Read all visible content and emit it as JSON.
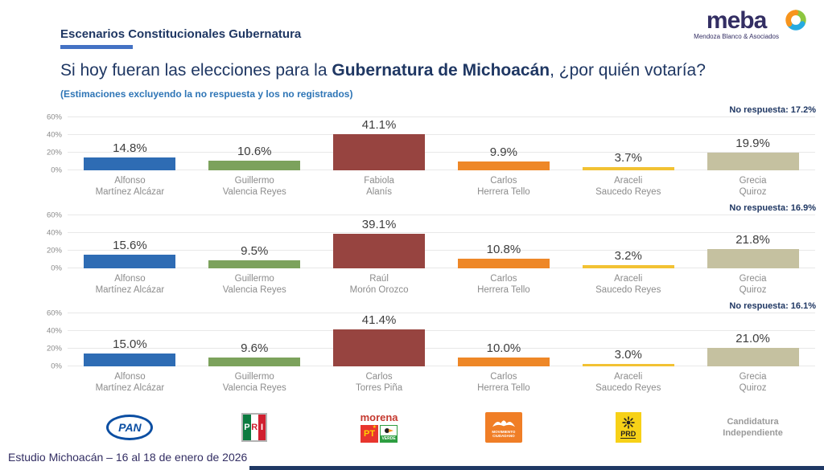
{
  "header": {
    "kicker": "Escenarios Constitucionales Gubernatura",
    "title_prefix": "Si hoy fueran las elecciones para la ",
    "title_bold": "Gubernatura de Michoacán",
    "title_suffix": ", ¿por quién votaría?",
    "subtitle": "(Estimaciones excluyendo la no respuesta y los no registrados)"
  },
  "logo": {
    "name": "meba",
    "tagline": "Mendoza Blanco & Asociados"
  },
  "chart_data": {
    "type": "bar",
    "unit": "%",
    "ylim": [
      0,
      60
    ],
    "y_tick_values": [
      0,
      20,
      40,
      60
    ],
    "y_tick_labels": [
      "0%",
      "20%",
      "40%",
      "60%"
    ],
    "grid": true,
    "scenarios": [
      {
        "no_response_label": "No respuesta: 17.2%",
        "bars": [
          {
            "name_line1": "Alfonso",
            "name_line2": "Martínez Alcázar",
            "party": "PAN",
            "value": 14.8,
            "label": "14.8%",
            "color": "#2e6cb4"
          },
          {
            "name_line1": "Guillermo",
            "name_line2": "Valencia Reyes",
            "party": "PRI",
            "value": 10.6,
            "label": "10.6%",
            "color": "#7ca25c"
          },
          {
            "name_line1": "Fabiola",
            "name_line2": "Alanís",
            "party": "Morena-PT-Verde",
            "value": 41.1,
            "label": "41.1%",
            "color": "#974440"
          },
          {
            "name_line1": "Carlos",
            "name_line2": "Herrera Tello",
            "party": "Movimiento Ciudadano",
            "value": 9.9,
            "label": "9.9%",
            "color": "#ee8727"
          },
          {
            "name_line1": "Araceli",
            "name_line2": "Saucedo Reyes",
            "party": "PRD",
            "value": 3.7,
            "label": "3.7%",
            "color": "#f2c233"
          },
          {
            "name_line1": "Grecia",
            "name_line2": "Quiroz",
            "party": "Candidatura Independiente",
            "value": 19.9,
            "label": "19.9%",
            "color": "#c5c1a0"
          }
        ]
      },
      {
        "no_response_label": "No respuesta: 16.9%",
        "bars": [
          {
            "name_line1": "Alfonso",
            "name_line2": "Martínez Alcázar",
            "party": "PAN",
            "value": 15.6,
            "label": "15.6%",
            "color": "#2e6cb4"
          },
          {
            "name_line1": "Guillermo",
            "name_line2": "Valencia Reyes",
            "party": "PRI",
            "value": 9.5,
            "label": "9.5%",
            "color": "#7ca25c"
          },
          {
            "name_line1": "Raúl",
            "name_line2": "Morón Orozco",
            "party": "Morena-PT-Verde",
            "value": 39.1,
            "label": "39.1%",
            "color": "#974440"
          },
          {
            "name_line1": "Carlos",
            "name_line2": "Herrera Tello",
            "party": "Movimiento Ciudadano",
            "value": 10.8,
            "label": "10.8%",
            "color": "#ee8727"
          },
          {
            "name_line1": "Araceli",
            "name_line2": "Saucedo Reyes",
            "party": "PRD",
            "value": 3.2,
            "label": "3.2%",
            "color": "#f2c233"
          },
          {
            "name_line1": "Grecia",
            "name_line2": "Quiroz",
            "party": "Candidatura Independiente",
            "value": 21.8,
            "label": "21.8%",
            "color": "#c5c1a0"
          }
        ]
      },
      {
        "no_response_label": "No respuesta: 16.1%",
        "bars": [
          {
            "name_line1": "Alfonso",
            "name_line2": "Martínez Alcázar",
            "party": "PAN",
            "value": 15.0,
            "label": "15.0%",
            "color": "#2e6cb4"
          },
          {
            "name_line1": "Guillermo",
            "name_line2": "Valencia Reyes",
            "party": "PRI",
            "value": 9.6,
            "label": "9.6%",
            "color": "#7ca25c"
          },
          {
            "name_line1": "Carlos",
            "name_line2": "Torres Piña",
            "party": "Morena-PT-Verde",
            "value": 41.4,
            "label": "41.4%",
            "color": "#974440"
          },
          {
            "name_line1": "Carlos",
            "name_line2": "Herrera Tello",
            "party": "Movimiento Ciudadano",
            "value": 10.0,
            "label": "10.0%",
            "color": "#ee8727"
          },
          {
            "name_line1": "Araceli",
            "name_line2": "Saucedo Reyes",
            "party": "PRD",
            "value": 3.0,
            "label": "3.0%",
            "color": "#f2c233"
          },
          {
            "name_line1": "Grecia",
            "name_line2": "Quiroz",
            "party": "Candidatura Independiente",
            "value": 21.0,
            "label": "21.0%",
            "color": "#c5c1a0"
          }
        ]
      }
    ]
  },
  "parties": {
    "pan": {
      "label": "PAN"
    },
    "pri": {
      "letters": [
        "P",
        "R",
        "I"
      ]
    },
    "morena": {
      "label": "morena"
    },
    "pt": {
      "label": "PT",
      "star": "★"
    },
    "verde": {
      "label": "VERDE"
    },
    "mc": {
      "label": "MOVIMIENTO CIUDADANO"
    },
    "prd": {
      "label": "PRD"
    },
    "independiente": {
      "line1": "Candidatura",
      "line2": "Independiente"
    }
  },
  "colors": {
    "navy": "#1f3763",
    "accent_blue": "#4472c4",
    "subtitle_blue": "#2e75b6"
  },
  "footer": {
    "source": "Estudio Michoacán – 16 al 18 de enero de 2026"
  }
}
